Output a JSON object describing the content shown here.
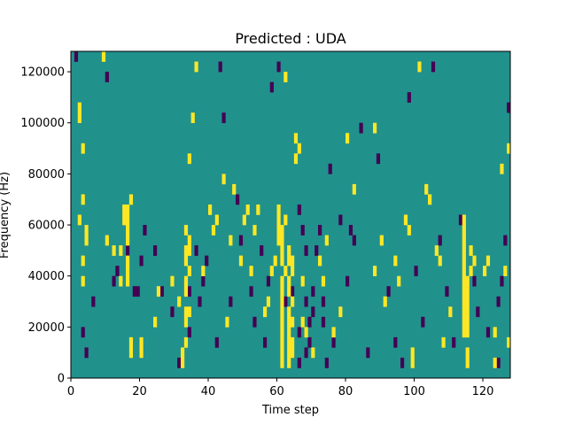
{
  "chart_data": {
    "type": "heatmap",
    "title": "Predicted : UDA",
    "xlabel": "Time step",
    "ylabel": "Frequency (Hz)",
    "xlim": [
      0,
      128
    ],
    "ylim": [
      0,
      128000
    ],
    "x_ticks": [
      "0",
      "20",
      "40",
      "60",
      "80",
      "100",
      "120"
    ],
    "y_ticks": [
      "0",
      "20000",
      "40000",
      "60000",
      "80000",
      "100000",
      "120000"
    ],
    "colormap": {
      "low": "#440154",
      "mid": "#21918c",
      "high": "#fde725"
    },
    "background_value": "mid",
    "grid": "off",
    "cells": {
      "bin_width_hz": 4000,
      "high": [
        [
          2,
          104000
        ],
        [
          2,
          100000
        ],
        [
          3,
          88000
        ],
        [
          3,
          68000
        ],
        [
          2,
          60000
        ],
        [
          4,
          56000
        ],
        [
          4,
          52000
        ],
        [
          3,
          44000
        ],
        [
          3,
          36000
        ],
        [
          9,
          124000
        ],
        [
          10,
          52000
        ],
        [
          12,
          48000
        ],
        [
          14,
          48000
        ],
        [
          14,
          36000
        ],
        [
          15,
          60000
        ],
        [
          15,
          64000
        ],
        [
          16,
          64000
        ],
        [
          16,
          60000
        ],
        [
          16,
          56000
        ],
        [
          16,
          52000
        ],
        [
          16,
          44000
        ],
        [
          16,
          40000
        ],
        [
          16,
          36000
        ],
        [
          17,
          68000
        ],
        [
          17,
          12000
        ],
        [
          17,
          8000
        ],
        [
          20,
          8000
        ],
        [
          20,
          12000
        ],
        [
          24,
          20000
        ],
        [
          25,
          32000
        ],
        [
          29,
          36000
        ],
        [
          31,
          28000
        ],
        [
          33,
          36000
        ],
        [
          33,
          32000
        ],
        [
          33,
          44000
        ],
        [
          33,
          48000
        ],
        [
          33,
          56000
        ],
        [
          34,
          40000
        ],
        [
          34,
          48000
        ],
        [
          34,
          52000
        ],
        [
          33,
          20000
        ],
        [
          33,
          24000
        ],
        [
          34,
          24000
        ],
        [
          33,
          12000
        ],
        [
          32,
          8000
        ],
        [
          32,
          4000
        ],
        [
          34,
          84000
        ],
        [
          35,
          100000
        ],
        [
          36,
          120000
        ],
        [
          38,
          40000
        ],
        [
          40,
          64000
        ],
        [
          41,
          56000
        ],
        [
          42,
          60000
        ],
        [
          44,
          76000
        ],
        [
          45,
          20000
        ],
        [
          46,
          52000
        ],
        [
          47,
          72000
        ],
        [
          49,
          44000
        ],
        [
          50,
          60000
        ],
        [
          51,
          64000
        ],
        [
          52,
          40000
        ],
        [
          53,
          56000
        ],
        [
          54,
          64000
        ],
        [
          56,
          24000
        ],
        [
          57,
          28000
        ],
        [
          58,
          40000
        ],
        [
          59,
          44000
        ],
        [
          60,
          52000
        ],
        [
          60,
          56000
        ],
        [
          60,
          60000
        ],
        [
          60,
          64000
        ],
        [
          61,
          56000
        ],
        [
          61,
          52000
        ],
        [
          61,
          48000
        ],
        [
          61,
          44000
        ],
        [
          61,
          36000
        ],
        [
          61,
          32000
        ],
        [
          61,
          28000
        ],
        [
          61,
          24000
        ],
        [
          61,
          20000
        ],
        [
          61,
          16000
        ],
        [
          61,
          12000
        ],
        [
          61,
          8000
        ],
        [
          61,
          4000
        ],
        [
          62,
          40000
        ],
        [
          62,
          60000
        ],
        [
          63,
          48000
        ],
        [
          63,
          44000
        ],
        [
          63,
          36000
        ],
        [
          63,
          32000
        ],
        [
          63,
          24000
        ],
        [
          63,
          20000
        ],
        [
          63,
          16000
        ],
        [
          63,
          12000
        ],
        [
          63,
          8000
        ],
        [
          63,
          4000
        ],
        [
          64,
          28000
        ],
        [
          64,
          40000
        ],
        [
          64,
          44000
        ],
        [
          64,
          20000
        ],
        [
          64,
          12000
        ],
        [
          64,
          8000
        ],
        [
          65,
          84000
        ],
        [
          65,
          92000
        ],
        [
          66,
          88000
        ],
        [
          62,
          116000
        ],
        [
          67,
          36000
        ],
        [
          67,
          20000
        ],
        [
          68,
          16000
        ],
        [
          70,
          8000
        ],
        [
          72,
          44000
        ],
        [
          73,
          36000
        ],
        [
          74,
          52000
        ],
        [
          76,
          16000
        ],
        [
          78,
          24000
        ],
        [
          80,
          92000
        ],
        [
          82,
          72000
        ],
        [
          88,
          96000
        ],
        [
          88,
          40000
        ],
        [
          90,
          52000
        ],
        [
          91,
          28000
        ],
        [
          94,
          44000
        ],
        [
          95,
          36000
        ],
        [
          97,
          60000
        ],
        [
          98,
          56000
        ],
        [
          99,
          8000
        ],
        [
          99,
          4000
        ],
        [
          101,
          120000
        ],
        [
          103,
          72000
        ],
        [
          104,
          68000
        ],
        [
          106,
          48000
        ],
        [
          107,
          44000
        ],
        [
          108,
          12000
        ],
        [
          110,
          24000
        ],
        [
          114,
          16000
        ],
        [
          114,
          20000
        ],
        [
          114,
          24000
        ],
        [
          114,
          28000
        ],
        [
          114,
          32000
        ],
        [
          114,
          36000
        ],
        [
          114,
          40000
        ],
        [
          114,
          44000
        ],
        [
          114,
          48000
        ],
        [
          114,
          52000
        ],
        [
          114,
          56000
        ],
        [
          114,
          60000
        ],
        [
          115,
          36000
        ],
        [
          115,
          32000
        ],
        [
          115,
          28000
        ],
        [
          115,
          24000
        ],
        [
          115,
          20000
        ],
        [
          115,
          16000
        ],
        [
          115,
          8000
        ],
        [
          115,
          4000
        ],
        [
          116,
          48000
        ],
        [
          116,
          40000
        ],
        [
          117,
          44000
        ],
        [
          120,
          40000
        ],
        [
          121,
          44000
        ],
        [
          123,
          4000
        ],
        [
          123,
          16000
        ],
        [
          125,
          80000
        ],
        [
          126,
          40000
        ],
        [
          127,
          88000
        ],
        [
          127,
          12000
        ]
      ],
      "low": [
        [
          1,
          124000
        ],
        [
          3,
          16000
        ],
        [
          4,
          8000
        ],
        [
          6,
          28000
        ],
        [
          10,
          116000
        ],
        [
          12,
          36000
        ],
        [
          13,
          40000
        ],
        [
          16,
          48000
        ],
        [
          18,
          32000
        ],
        [
          19,
          32000
        ],
        [
          20,
          44000
        ],
        [
          21,
          56000
        ],
        [
          24,
          48000
        ],
        [
          26,
          32000
        ],
        [
          29,
          24000
        ],
        [
          31,
          4000
        ],
        [
          34,
          32000
        ],
        [
          34,
          16000
        ],
        [
          36,
          48000
        ],
        [
          37,
          28000
        ],
        [
          38,
          36000
        ],
        [
          39,
          44000
        ],
        [
          42,
          12000
        ],
        [
          43,
          120000
        ],
        [
          44,
          100000
        ],
        [
          46,
          28000
        ],
        [
          48,
          68000
        ],
        [
          49,
          52000
        ],
        [
          52,
          32000
        ],
        [
          53,
          20000
        ],
        [
          55,
          48000
        ],
        [
          56,
          12000
        ],
        [
          57,
          36000
        ],
        [
          58,
          112000
        ],
        [
          60,
          120000
        ],
        [
          62,
          28000
        ],
        [
          64,
          32000
        ],
        [
          66,
          4000
        ],
        [
          66,
          16000
        ],
        [
          66,
          64000
        ],
        [
          67,
          56000
        ],
        [
          68,
          8000
        ],
        [
          68,
          48000
        ],
        [
          68,
          28000
        ],
        [
          69,
          20000
        ],
        [
          70,
          24000
        ],
        [
          69,
          12000
        ],
        [
          70,
          32000
        ],
        [
          71,
          48000
        ],
        [
          72,
          56000
        ],
        [
          73,
          20000
        ],
        [
          73,
          28000
        ],
        [
          74,
          4000
        ],
        [
          75,
          80000
        ],
        [
          76,
          12000
        ],
        [
          78,
          60000
        ],
        [
          80,
          36000
        ],
        [
          81,
          56000
        ],
        [
          82,
          52000
        ],
        [
          84,
          96000
        ],
        [
          86,
          8000
        ],
        [
          89,
          84000
        ],
        [
          92,
          32000
        ],
        [
          94,
          12000
        ],
        [
          96,
          4000
        ],
        [
          98,
          108000
        ],
        [
          100,
          40000
        ],
        [
          102,
          20000
        ],
        [
          105,
          120000
        ],
        [
          107,
          52000
        ],
        [
          109,
          32000
        ],
        [
          111,
          12000
        ],
        [
          113,
          60000
        ],
        [
          117,
          36000
        ],
        [
          118,
          24000
        ],
        [
          121,
          16000
        ],
        [
          124,
          4000
        ],
        [
          124,
          28000
        ],
        [
          125,
          36000
        ],
        [
          126,
          52000
        ],
        [
          127,
          104000
        ]
      ]
    }
  }
}
